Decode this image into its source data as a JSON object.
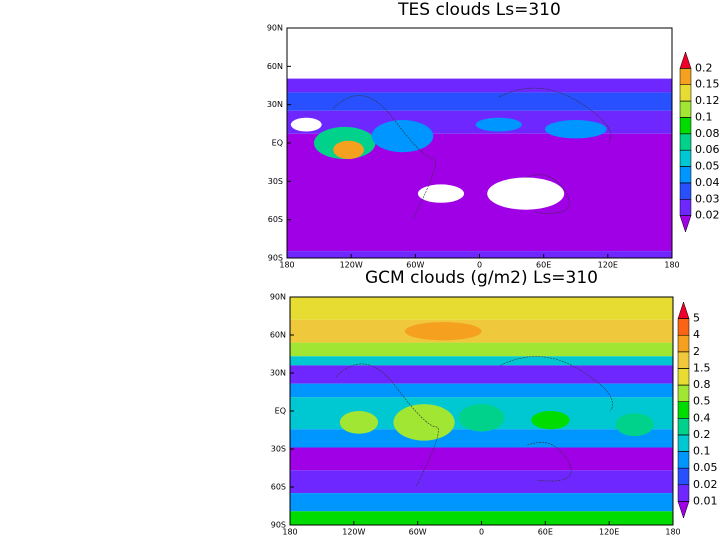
{
  "chart_data": [
    {
      "type": "filled-contour-map",
      "title": "TES clouds Ls=310",
      "xlim": [
        -180,
        180
      ],
      "ylim": [
        -90,
        90
      ],
      "xticks": [
        {
          "value": -180,
          "label": "180"
        },
        {
          "value": -120,
          "label": "120W"
        },
        {
          "value": -60,
          "label": "60W"
        },
        0,
        {
          "value": 60,
          "label": "60E"
        },
        {
          "value": 120,
          "label": "120E"
        },
        180
      ],
      "yticks": [
        {
          "value": -90,
          "label": "90S"
        },
        {
          "value": -60,
          "label": "60S"
        },
        {
          "value": -30,
          "label": "30S"
        },
        {
          "value": 0,
          "label": "EQ"
        },
        {
          "value": 30,
          "label": "30N"
        },
        {
          "value": 60,
          "label": "60N"
        },
        {
          "value": 90,
          "label": "90N"
        }
      ],
      "levels": [
        0.02,
        0.03,
        0.04,
        0.05,
        0.06,
        0.08,
        0.1,
        0.12,
        0.15,
        0.2
      ],
      "colors": [
        "#a000e6",
        "#6e28ff",
        "#2850ff",
        "#0096ff",
        "#00c8d2",
        "#00d28c",
        "#00dc00",
        "#a0e632",
        "#e6dc32",
        "#f5a01e",
        "#f00028"
      ]
    },
    {
      "type": "filled-contour-map",
      "title": "GCM clouds (g/m2) Ls=310",
      "xlim": [
        -180,
        180
      ],
      "ylim": [
        -90,
        90
      ],
      "xticks": [
        {
          "value": -180,
          "label": "180"
        },
        {
          "value": -120,
          "label": "120W"
        },
        {
          "value": -60,
          "label": "60W"
        },
        0,
        {
          "value": 60,
          "label": "60E"
        },
        {
          "value": 120,
          "label": "120E"
        },
        180
      ],
      "yticks": [
        {
          "value": -90,
          "label": "90S"
        },
        {
          "value": -60,
          "label": "60S"
        },
        {
          "value": -30,
          "label": "30S"
        },
        {
          "value": 0,
          "label": "EQ"
        },
        {
          "value": 30,
          "label": "30N"
        },
        {
          "value": 60,
          "label": "60N"
        },
        {
          "value": 90,
          "label": "90N"
        }
      ],
      "levels": [
        0.01,
        0.02,
        0.05,
        0.1,
        0.2,
        0.4,
        0.5,
        0.8,
        1.5,
        2,
        4,
        5
      ],
      "colors": [
        "#a000e6",
        "#6e28ff",
        "#2850ff",
        "#0096ff",
        "#00c8d2",
        "#00d28c",
        "#00dc00",
        "#a0e632",
        "#e6dc32",
        "#f0c83c",
        "#f5a01e",
        "#fa6414",
        "#f00028"
      ]
    }
  ]
}
